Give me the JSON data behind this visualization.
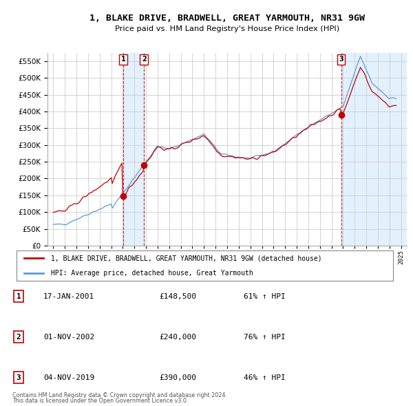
{
  "title": "1, BLAKE DRIVE, BRADWELL, GREAT YARMOUTH, NR31 9GW",
  "subtitle": "Price paid vs. HM Land Registry's House Price Index (HPI)",
  "hpi_label": "HPI: Average price, detached house, Great Yarmouth",
  "property_label": "1, BLAKE DRIVE, BRADWELL, GREAT YARMOUTH, NR31 9GW (detached house)",
  "footnote1": "Contains HM Land Registry data © Crown copyright and database right 2024.",
  "footnote2": "This data is licensed under the Open Government Licence v3.0.",
  "sales": [
    {
      "num": 1,
      "date": "17-JAN-2001",
      "price": 148500,
      "pct": "61% ↑ HPI",
      "x": 2001.04
    },
    {
      "num": 2,
      "date": "01-NOV-2002",
      "price": 240000,
      "pct": "76% ↑ HPI",
      "x": 2002.83
    },
    {
      "num": 3,
      "date": "04-NOV-2019",
      "price": 390000,
      "pct": "46% ↑ HPI",
      "x": 2019.83
    }
  ],
  "hpi_color": "#5b9bd5",
  "price_color": "#c00000",
  "shade_color": "#ddeeff",
  "ylim": [
    0,
    575000
  ],
  "yticks": [
    0,
    50000,
    100000,
    150000,
    200000,
    250000,
    300000,
    350000,
    400000,
    450000,
    500000,
    550000
  ],
  "xlim_start": 1994.5,
  "xlim_end": 2025.5,
  "background_color": "#f0f4f8"
}
